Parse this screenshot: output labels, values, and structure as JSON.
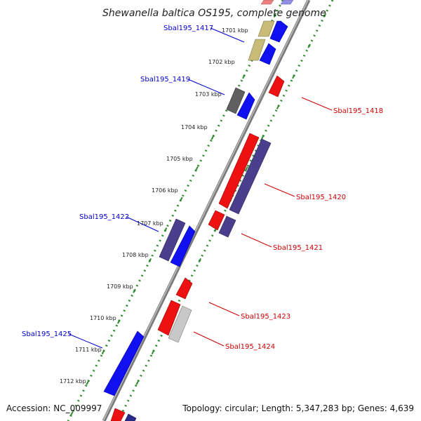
{
  "title": "Shewanella baltica OS195, complete genome",
  "accession": "Accession: NC_009997",
  "topology": "Topology: circular; Length: 5,347,283 bp; Genes: 4,639",
  "colors": {
    "backbone": "#8c8c8c",
    "ruler": "#2e8b2e",
    "label_left": "#0000cc",
    "label_right": "#cc0000"
  },
  "kbp_labels": [
    "1701 kbp",
    "1702 kbp",
    "1703 kbp",
    "1704 kbp",
    "1705 kbp",
    "1706 kbp",
    "1707 kbp",
    "1708 kbp",
    "1709 kbp",
    "1710 kbp",
    "1711 kbp",
    "1712 kbp"
  ],
  "gene_labels": {
    "left": [
      "Sbal195_1417",
      "Sbal195_1419",
      "Sbal195_1422",
      "Sbal195_1425"
    ],
    "right": [
      "Sbal195_1418",
      "Sbal195_1420",
      "Sbal195_1421",
      "Sbal195_1423",
      "Sbal195_1424"
    ]
  }
}
